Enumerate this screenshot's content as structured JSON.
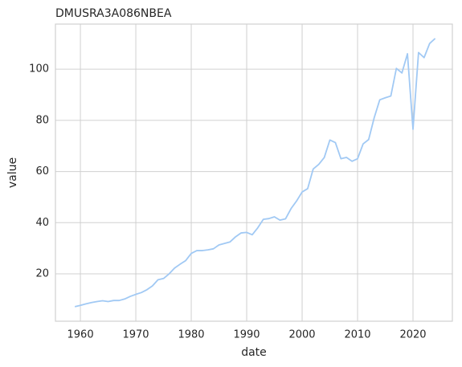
{
  "chart_data": {
    "type": "line",
    "title": "DMUSRA3A086NBEA",
    "x_label": "date",
    "y_label": "value",
    "x": [
      1959,
      1960,
      1961,
      1962,
      1963,
      1964,
      1965,
      1966,
      1967,
      1968,
      1969,
      1970,
      1971,
      1972,
      1973,
      1974,
      1975,
      1976,
      1977,
      1978,
      1979,
      1980,
      1981,
      1982,
      1983,
      1984,
      1985,
      1986,
      1987,
      1988,
      1989,
      1990,
      1991,
      1992,
      1993,
      1994,
      1995,
      1996,
      1997,
      1998,
      1999,
      2000,
      2001,
      2002,
      2003,
      2004,
      2005,
      2006,
      2007,
      2008,
      2009,
      2010,
      2011,
      2012,
      2013,
      2014,
      2015,
      2016,
      2017,
      2018,
      2019,
      2020,
      2021,
      2022,
      2023,
      2024
    ],
    "values": [
      7.2,
      7.7,
      8.3,
      8.8,
      9.2,
      9.5,
      9.2,
      9.6,
      9.6,
      10.2,
      11.2,
      12.0,
      12.7,
      13.8,
      15.3,
      17.7,
      18.2,
      20.0,
      22.3,
      23.8,
      25.2,
      28.0,
      29.1,
      29.1,
      29.4,
      29.8,
      31.3,
      31.9,
      32.5,
      34.5,
      36.0,
      36.2,
      35.3,
      38.0,
      41.3,
      41.6,
      42.3,
      41.0,
      41.5,
      45.5,
      48.5,
      52.0,
      53.3,
      61.0,
      62.8,
      65.5,
      72.3,
      71.3,
      65.0,
      65.5,
      64.0,
      65.0,
      70.8,
      72.5,
      81.0,
      88.0,
      88.8,
      89.5,
      100.3,
      98.5,
      106.0,
      76.5,
      106.5,
      104.5,
      110.0,
      112.0
    ],
    "color": "#a1c9f4",
    "xlim": [
      1955.5,
      2027.1
    ],
    "ylim": [
      1.5,
      117.6
    ],
    "xticks": [
      1960,
      1970,
      1980,
      1990,
      2000,
      2010,
      2020
    ],
    "yticks": [
      20,
      40,
      60,
      80,
      100
    ],
    "grid": true
  }
}
